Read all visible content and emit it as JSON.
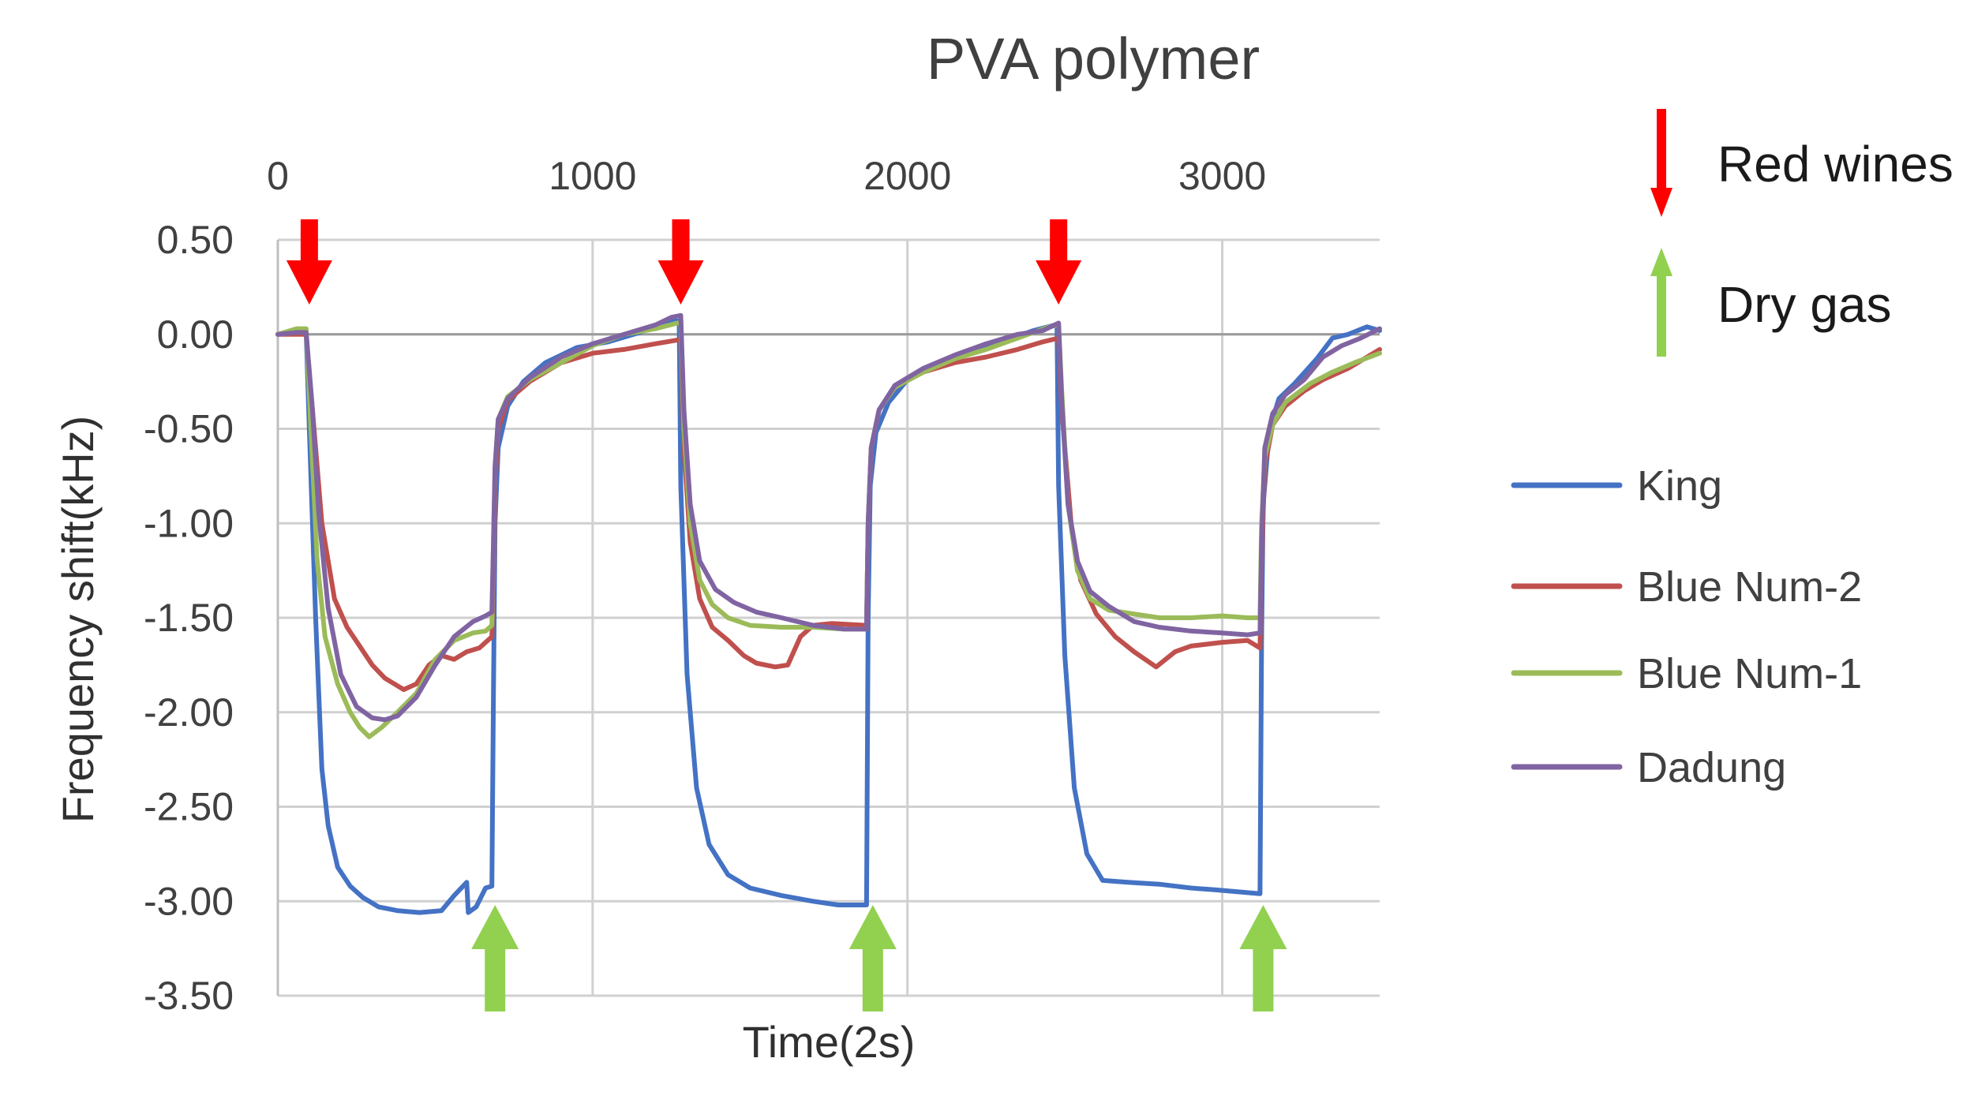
{
  "chart_data": {
    "type": "line",
    "title": "PVA polymer",
    "xlabel": "Time(2s)",
    "ylabel": "Frequency shift(kHz)",
    "xlim": [
      0,
      3500
    ],
    "ylim": [
      -3.5,
      0.5
    ],
    "x_axis_position": "top",
    "grid": true,
    "x_ticks": [
      0,
      1000,
      2000,
      3000
    ],
    "x_tick_labels": [
      "0",
      "1000",
      "2000",
      "3000"
    ],
    "y_ticks": [
      0.5,
      0.0,
      -0.5,
      -1.0,
      -1.5,
      -2.0,
      -2.5,
      -3.0,
      -3.5
    ],
    "y_tick_labels": [
      "0.50",
      "0.00",
      "-0.50",
      "-1.00",
      "-1.50",
      "-2.00",
      "-2.50",
      "-3.00",
      "-3.50"
    ],
    "legend_position": "right",
    "series": [
      {
        "name": "King",
        "color": "#4472C4",
        "points": [
          [
            0,
            0
          ],
          [
            60,
            0.01
          ],
          [
            90,
            0.01
          ],
          [
            100,
            -0.5
          ],
          [
            120,
            -1.5
          ],
          [
            140,
            -2.3
          ],
          [
            160,
            -2.6
          ],
          [
            190,
            -2.82
          ],
          [
            230,
            -2.92
          ],
          [
            270,
            -2.98
          ],
          [
            320,
            -3.03
          ],
          [
            380,
            -3.05
          ],
          [
            450,
            -3.06
          ],
          [
            520,
            -3.05
          ],
          [
            560,
            -2.97
          ],
          [
            600,
            -2.9
          ],
          [
            605,
            -3.06
          ],
          [
            630,
            -3.03
          ],
          [
            660,
            -2.93
          ],
          [
            680,
            -2.92
          ],
          [
            685,
            -1.9
          ],
          [
            690,
            -1.0
          ],
          [
            700,
            -0.6
          ],
          [
            730,
            -0.38
          ],
          [
            780,
            -0.25
          ],
          [
            850,
            -0.15
          ],
          [
            950,
            -0.07
          ],
          [
            1050,
            -0.04
          ],
          [
            1150,
            0.01
          ],
          [
            1200,
            0.05
          ],
          [
            1260,
            0.07
          ],
          [
            1275,
            0.07
          ],
          [
            1280,
            -0.8
          ],
          [
            1300,
            -1.8
          ],
          [
            1330,
            -2.4
          ],
          [
            1370,
            -2.7
          ],
          [
            1430,
            -2.86
          ],
          [
            1500,
            -2.93
          ],
          [
            1600,
            -2.97
          ],
          [
            1700,
            -3.0
          ],
          [
            1780,
            -3.02
          ],
          [
            1870,
            -3.02
          ],
          [
            1875,
            -1.5
          ],
          [
            1882,
            -0.8
          ],
          [
            1900,
            -0.52
          ],
          [
            1940,
            -0.36
          ],
          [
            2000,
            -0.24
          ],
          [
            2100,
            -0.16
          ],
          [
            2200,
            -0.1
          ],
          [
            2300,
            -0.04
          ],
          [
            2400,
            0.02
          ],
          [
            2470,
            0.05
          ],
          [
            2475,
            0.05
          ],
          [
            2480,
            -0.8
          ],
          [
            2500,
            -1.7
          ],
          [
            2530,
            -2.4
          ],
          [
            2570,
            -2.75
          ],
          [
            2620,
            -2.89
          ],
          [
            2700,
            -2.9
          ],
          [
            2800,
            -2.91
          ],
          [
            2900,
            -2.93
          ],
          [
            2980,
            -2.94
          ],
          [
            3120,
            -2.96
          ],
          [
            3125,
            -1.6
          ],
          [
            3130,
            -0.9
          ],
          [
            3150,
            -0.5
          ],
          [
            3180,
            -0.34
          ],
          [
            3230,
            -0.26
          ],
          [
            3300,
            -0.13
          ],
          [
            3350,
            -0.02
          ],
          [
            3400,
            0.0
          ],
          [
            3460,
            0.04
          ],
          [
            3500,
            0.02
          ]
        ]
      },
      {
        "name": "Blue Num-2",
        "color": "#C0504D",
        "points": [
          [
            0,
            0
          ],
          [
            60,
            0.0
          ],
          [
            90,
            0.0
          ],
          [
            110,
            -0.4
          ],
          [
            140,
            -1.0
          ],
          [
            180,
            -1.4
          ],
          [
            220,
            -1.55
          ],
          [
            260,
            -1.65
          ],
          [
            300,
            -1.75
          ],
          [
            340,
            -1.82
          ],
          [
            400,
            -1.88
          ],
          [
            440,
            -1.85
          ],
          [
            480,
            -1.75
          ],
          [
            520,
            -1.7
          ],
          [
            560,
            -1.72
          ],
          [
            600,
            -1.68
          ],
          [
            640,
            -1.66
          ],
          [
            680,
            -1.6
          ],
          [
            685,
            -1.3
          ],
          [
            690,
            -0.8
          ],
          [
            700,
            -0.5
          ],
          [
            730,
            -0.35
          ],
          [
            800,
            -0.25
          ],
          [
            900,
            -0.15
          ],
          [
            1000,
            -0.1
          ],
          [
            1100,
            -0.08
          ],
          [
            1200,
            -0.05
          ],
          [
            1270,
            -0.03
          ],
          [
            1280,
            -0.03
          ],
          [
            1290,
            -0.6
          ],
          [
            1310,
            -1.1
          ],
          [
            1340,
            -1.4
          ],
          [
            1380,
            -1.55
          ],
          [
            1430,
            -1.62
          ],
          [
            1480,
            -1.7
          ],
          [
            1520,
            -1.74
          ],
          [
            1580,
            -1.76
          ],
          [
            1620,
            -1.75
          ],
          [
            1660,
            -1.6
          ],
          [
            1700,
            -1.54
          ],
          [
            1760,
            -1.53
          ],
          [
            1870,
            -1.54
          ],
          [
            1875,
            -1.0
          ],
          [
            1885,
            -0.6
          ],
          [
            1910,
            -0.4
          ],
          [
            1960,
            -0.28
          ],
          [
            2050,
            -0.2
          ],
          [
            2150,
            -0.15
          ],
          [
            2250,
            -0.12
          ],
          [
            2350,
            -0.08
          ],
          [
            2430,
            -0.04
          ],
          [
            2480,
            -0.02
          ],
          [
            2490,
            -0.4
          ],
          [
            2520,
            -1.0
          ],
          [
            2550,
            -1.3
          ],
          [
            2600,
            -1.48
          ],
          [
            2660,
            -1.6
          ],
          [
            2720,
            -1.68
          ],
          [
            2790,
            -1.76
          ],
          [
            2850,
            -1.68
          ],
          [
            2900,
            -1.65
          ],
          [
            3000,
            -1.63
          ],
          [
            3080,
            -1.62
          ],
          [
            3120,
            -1.66
          ],
          [
            3125,
            -1.2
          ],
          [
            3135,
            -0.7
          ],
          [
            3160,
            -0.48
          ],
          [
            3200,
            -0.38
          ],
          [
            3260,
            -0.3
          ],
          [
            3320,
            -0.24
          ],
          [
            3400,
            -0.18
          ],
          [
            3500,
            -0.08
          ]
        ]
      },
      {
        "name": "Blue Num-1",
        "color": "#9BBB59",
        "points": [
          [
            0,
            0
          ],
          [
            60,
            0.03
          ],
          [
            90,
            0.03
          ],
          [
            105,
            -0.5
          ],
          [
            125,
            -1.2
          ],
          [
            150,
            -1.6
          ],
          [
            190,
            -1.85
          ],
          [
            230,
            -2.0
          ],
          [
            260,
            -2.08
          ],
          [
            290,
            -2.13
          ],
          [
            330,
            -2.08
          ],
          [
            380,
            -2.0
          ],
          [
            440,
            -1.9
          ],
          [
            500,
            -1.72
          ],
          [
            560,
            -1.62
          ],
          [
            620,
            -1.58
          ],
          [
            660,
            -1.57
          ],
          [
            680,
            -1.54
          ],
          [
            685,
            -1.1
          ],
          [
            690,
            -0.7
          ],
          [
            700,
            -0.45
          ],
          [
            730,
            -0.33
          ],
          [
            800,
            -0.24
          ],
          [
            900,
            -0.15
          ],
          [
            1000,
            -0.06
          ],
          [
            1100,
            0.0
          ],
          [
            1200,
            0.03
          ],
          [
            1270,
            0.06
          ],
          [
            1280,
            0.06
          ],
          [
            1290,
            -0.5
          ],
          [
            1310,
            -1.0
          ],
          [
            1340,
            -1.3
          ],
          [
            1380,
            -1.43
          ],
          [
            1430,
            -1.5
          ],
          [
            1500,
            -1.54
          ],
          [
            1600,
            -1.55
          ],
          [
            1700,
            -1.55
          ],
          [
            1800,
            -1.56
          ],
          [
            1870,
            -1.56
          ],
          [
            1875,
            -1.0
          ],
          [
            1885,
            -0.6
          ],
          [
            1910,
            -0.4
          ],
          [
            1960,
            -0.28
          ],
          [
            2050,
            -0.2
          ],
          [
            2150,
            -0.13
          ],
          [
            2250,
            -0.08
          ],
          [
            2350,
            -0.02
          ],
          [
            2450,
            0.04
          ],
          [
            2480,
            0.05
          ],
          [
            2490,
            -0.3
          ],
          [
            2510,
            -0.9
          ],
          [
            2540,
            -1.25
          ],
          [
            2580,
            -1.4
          ],
          [
            2640,
            -1.46
          ],
          [
            2720,
            -1.48
          ],
          [
            2800,
            -1.5
          ],
          [
            2900,
            -1.5
          ],
          [
            3000,
            -1.49
          ],
          [
            3080,
            -1.5
          ],
          [
            3120,
            -1.5
          ],
          [
            3125,
            -1.0
          ],
          [
            3135,
            -0.65
          ],
          [
            3160,
            -0.48
          ],
          [
            3200,
            -0.36
          ],
          [
            3280,
            -0.26
          ],
          [
            3350,
            -0.2
          ],
          [
            3420,
            -0.15
          ],
          [
            3500,
            -0.1
          ]
        ]
      },
      {
        "name": "Dadung",
        "color": "#8064A2",
        "points": [
          [
            0,
            0
          ],
          [
            60,
            0.01
          ],
          [
            90,
            0.01
          ],
          [
            110,
            -0.4
          ],
          [
            130,
            -0.95
          ],
          [
            160,
            -1.45
          ],
          [
            200,
            -1.8
          ],
          [
            250,
            -1.97
          ],
          [
            300,
            -2.03
          ],
          [
            340,
            -2.04
          ],
          [
            380,
            -2.02
          ],
          [
            440,
            -1.92
          ],
          [
            500,
            -1.75
          ],
          [
            560,
            -1.6
          ],
          [
            620,
            -1.52
          ],
          [
            660,
            -1.49
          ],
          [
            680,
            -1.47
          ],
          [
            685,
            -1.1
          ],
          [
            690,
            -0.7
          ],
          [
            700,
            -0.45
          ],
          [
            730,
            -0.34
          ],
          [
            800,
            -0.23
          ],
          [
            900,
            -0.12
          ],
          [
            1000,
            -0.05
          ],
          [
            1100,
            0.0
          ],
          [
            1200,
            0.05
          ],
          [
            1250,
            0.09
          ],
          [
            1280,
            0.1
          ],
          [
            1290,
            -0.4
          ],
          [
            1310,
            -0.9
          ],
          [
            1340,
            -1.2
          ],
          [
            1390,
            -1.35
          ],
          [
            1450,
            -1.42
          ],
          [
            1520,
            -1.47
          ],
          [
            1600,
            -1.5
          ],
          [
            1700,
            -1.54
          ],
          [
            1800,
            -1.56
          ],
          [
            1870,
            -1.56
          ],
          [
            1875,
            -1.0
          ],
          [
            1885,
            -0.6
          ],
          [
            1910,
            -0.4
          ],
          [
            1960,
            -0.27
          ],
          [
            2050,
            -0.18
          ],
          [
            2150,
            -0.11
          ],
          [
            2250,
            -0.05
          ],
          [
            2350,
            0.0
          ],
          [
            2430,
            0.02
          ],
          [
            2480,
            0.06
          ],
          [
            2490,
            -0.35
          ],
          [
            2510,
            -0.9
          ],
          [
            2540,
            -1.2
          ],
          [
            2580,
            -1.36
          ],
          [
            2640,
            -1.44
          ],
          [
            2720,
            -1.52
          ],
          [
            2800,
            -1.55
          ],
          [
            2900,
            -1.57
          ],
          [
            3000,
            -1.58
          ],
          [
            3080,
            -1.59
          ],
          [
            3120,
            -1.58
          ],
          [
            3125,
            -1.1
          ],
          [
            3135,
            -0.6
          ],
          [
            3160,
            -0.42
          ],
          [
            3200,
            -0.32
          ],
          [
            3260,
            -0.24
          ],
          [
            3320,
            -0.12
          ],
          [
            3380,
            -0.06
          ],
          [
            3440,
            -0.02
          ],
          [
            3500,
            0.03
          ]
        ]
      }
    ],
    "annotations": [
      {
        "name": "red-arrow",
        "label": "Red wines",
        "color": "#FF0000",
        "x_positions": [
          100,
          1280,
          2480
        ]
      },
      {
        "name": "green-arrow",
        "label": "Dry gas",
        "color": "#92D050",
        "x_positions": [
          690,
          1890,
          3130
        ]
      }
    ]
  }
}
